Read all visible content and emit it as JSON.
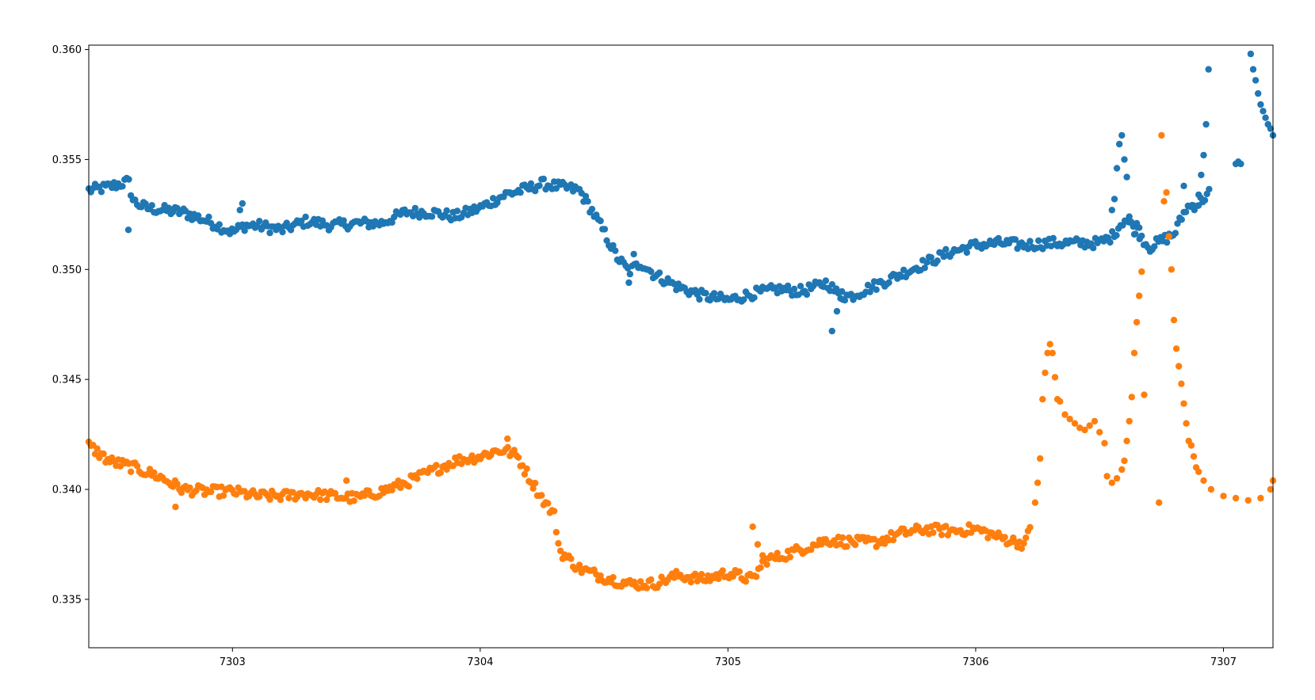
{
  "colors": {
    "series_1": "#1f77b4",
    "series_2": "#ff7f0e",
    "axes": "#000000",
    "background": "#ffffff"
  },
  "chart_data": {
    "type": "scatter",
    "title": "",
    "xlabel": "",
    "ylabel": "",
    "xlim": [
      7302.42,
      7307.2
    ],
    "ylim": [
      0.3328,
      0.3602
    ],
    "grid": false,
    "legend": "none",
    "x_ticks": [
      "7303",
      "7304",
      "7305",
      "7306",
      "7307"
    ],
    "y_ticks": [
      "0.335",
      "0.340",
      "0.345",
      "0.350",
      "0.355",
      "0.360"
    ],
    "series": [
      {
        "color": "#1f77b4",
        "profile": [
          [
            7302.42,
            0.3536
          ],
          [
            7302.48,
            0.3537
          ],
          [
            7302.55,
            0.3539
          ],
          [
            7302.58,
            0.354
          ],
          [
            7302.6,
            0.3531
          ],
          [
            7302.65,
            0.3528
          ],
          [
            7302.72,
            0.3527
          ],
          [
            7302.8,
            0.3526
          ],
          [
            7302.9,
            0.3522
          ],
          [
            7303.0,
            0.3517
          ],
          [
            7303.05,
            0.352
          ],
          [
            7303.1,
            0.352
          ],
          [
            7303.2,
            0.3518
          ],
          [
            7303.3,
            0.3522
          ],
          [
            7303.4,
            0.352
          ],
          [
            7303.5,
            0.3521
          ],
          [
            7303.6,
            0.3521
          ],
          [
            7303.7,
            0.3526
          ],
          [
            7303.8,
            0.3526
          ],
          [
            7303.9,
            0.3524
          ],
          [
            7304.0,
            0.3528
          ],
          [
            7304.1,
            0.3534
          ],
          [
            7304.2,
            0.3537
          ],
          [
            7304.25,
            0.3539
          ],
          [
            7304.3,
            0.3538
          ],
          [
            7304.4,
            0.3536
          ],
          [
            7304.45,
            0.3527
          ],
          [
            7304.5,
            0.3517
          ],
          [
            7304.55,
            0.3506
          ],
          [
            7304.6,
            0.3499
          ],
          [
            7304.65,
            0.3503
          ],
          [
            7304.7,
            0.3498
          ],
          [
            7304.8,
            0.3492
          ],
          [
            7304.9,
            0.3488
          ],
          [
            7305.0,
            0.3486
          ],
          [
            7305.1,
            0.3489
          ],
          [
            7305.2,
            0.3491
          ],
          [
            7305.3,
            0.349
          ],
          [
            7305.4,
            0.3494
          ],
          [
            7305.45,
            0.3488
          ],
          [
            7305.5,
            0.3488
          ],
          [
            7305.6,
            0.3493
          ],
          [
            7305.7,
            0.3498
          ],
          [
            7305.8,
            0.3503
          ],
          [
            7305.9,
            0.3508
          ],
          [
            7306.0,
            0.3511
          ],
          [
            7306.1,
            0.3512
          ],
          [
            7306.2,
            0.3511
          ],
          [
            7306.3,
            0.3512
          ],
          [
            7306.4,
            0.3512
          ],
          [
            7306.5,
            0.3512
          ],
          [
            7306.55,
            0.3515
          ],
          [
            7306.6,
            0.3523
          ],
          [
            7306.65,
            0.3518
          ],
          [
            7306.7,
            0.351
          ],
          [
            7306.8,
            0.3516
          ],
          [
            7306.85,
            0.3528
          ],
          [
            7306.9,
            0.353
          ],
          [
            7306.95,
            0.3536
          ]
        ],
        "extra_points": [
          [
            7302.58,
            0.3518
          ],
          [
            7303.03,
            0.3527
          ],
          [
            7303.04,
            0.353
          ],
          [
            7304.6,
            0.3494
          ],
          [
            7304.62,
            0.3507
          ],
          [
            7305.42,
            0.3472
          ],
          [
            7305.44,
            0.3481
          ],
          [
            7305.46,
            0.349
          ],
          [
            7306.55,
            0.3527
          ],
          [
            7306.56,
            0.3532
          ],
          [
            7306.57,
            0.3546
          ],
          [
            7306.58,
            0.3557
          ],
          [
            7306.59,
            0.3561
          ],
          [
            7306.6,
            0.355
          ],
          [
            7306.61,
            0.3542
          ],
          [
            7306.62,
            0.3524
          ],
          [
            7306.64,
            0.3516
          ],
          [
            7306.65,
            0.3521
          ],
          [
            7306.66,
            0.3519
          ],
          [
            7306.84,
            0.3538
          ],
          [
            7306.88,
            0.3529
          ],
          [
            7306.9,
            0.3534
          ],
          [
            7306.91,
            0.3543
          ],
          [
            7306.92,
            0.3552
          ],
          [
            7306.93,
            0.3566
          ],
          [
            7306.94,
            0.3591
          ],
          [
            7307.05,
            0.3548
          ],
          [
            7307.06,
            0.3549
          ],
          [
            7307.07,
            0.3548
          ],
          [
            7307.11,
            0.3598
          ],
          [
            7307.12,
            0.3591
          ],
          [
            7307.13,
            0.3586
          ],
          [
            7307.14,
            0.358
          ],
          [
            7307.15,
            0.3575
          ],
          [
            7307.16,
            0.3572
          ],
          [
            7307.17,
            0.3569
          ],
          [
            7307.18,
            0.3566
          ],
          [
            7307.19,
            0.3564
          ],
          [
            7307.2,
            0.3561
          ]
        ]
      },
      {
        "color": "#ff7f0e",
        "profile": [
          [
            7302.42,
            0.342
          ],
          [
            7302.5,
            0.3413
          ],
          [
            7302.6,
            0.341
          ],
          [
            7302.7,
            0.3406
          ],
          [
            7302.8,
            0.34
          ],
          [
            7302.9,
            0.3399
          ],
          [
            7303.0,
            0.3399
          ],
          [
            7303.1,
            0.3397
          ],
          [
            7303.2,
            0.3397
          ],
          [
            7303.3,
            0.3398
          ],
          [
            7303.4,
            0.3397
          ],
          [
            7303.5,
            0.3396
          ],
          [
            7303.6,
            0.3399
          ],
          [
            7303.7,
            0.3403
          ],
          [
            7303.8,
            0.3408
          ],
          [
            7303.9,
            0.3413
          ],
          [
            7304.0,
            0.3415
          ],
          [
            7304.05,
            0.3417
          ],
          [
            7304.1,
            0.3418
          ],
          [
            7304.15,
            0.3415
          ],
          [
            7304.2,
            0.3405
          ],
          [
            7304.25,
            0.3396
          ],
          [
            7304.3,
            0.3388
          ],
          [
            7304.32,
            0.3372
          ],
          [
            7304.4,
            0.3364
          ],
          [
            7304.5,
            0.336
          ],
          [
            7304.6,
            0.3357
          ],
          [
            7304.7,
            0.3357
          ],
          [
            7304.8,
            0.3361
          ],
          [
            7304.9,
            0.3359
          ],
          [
            7305.0,
            0.3362
          ],
          [
            7305.1,
            0.3359
          ],
          [
            7305.15,
            0.3368
          ],
          [
            7305.2,
            0.3369
          ],
          [
            7305.3,
            0.3373
          ],
          [
            7305.4,
            0.3377
          ],
          [
            7305.5,
            0.3376
          ],
          [
            7305.6,
            0.3376
          ],
          [
            7305.7,
            0.338
          ],
          [
            7305.8,
            0.3382
          ],
          [
            7305.9,
            0.3381
          ],
          [
            7306.0,
            0.3382
          ],
          [
            7306.1,
            0.3378
          ],
          [
            7306.2,
            0.3375
          ],
          [
            7306.22,
            0.3383
          ]
        ],
        "extra_points": [
          [
            7302.77,
            0.3392
          ],
          [
            7303.46,
            0.3404
          ],
          [
            7304.11,
            0.3423
          ],
          [
            7305.1,
            0.3383
          ],
          [
            7305.12,
            0.3375
          ],
          [
            7305.14,
            0.337
          ],
          [
            7306.24,
            0.3394
          ],
          [
            7306.25,
            0.3403
          ],
          [
            7306.26,
            0.3414
          ],
          [
            7306.27,
            0.3441
          ],
          [
            7306.28,
            0.3453
          ],
          [
            7306.29,
            0.3462
          ],
          [
            7306.3,
            0.3466
          ],
          [
            7306.31,
            0.3462
          ],
          [
            7306.32,
            0.3451
          ],
          [
            7306.33,
            0.3441
          ],
          [
            7306.34,
            0.344
          ],
          [
            7306.36,
            0.3434
          ],
          [
            7306.38,
            0.3432
          ],
          [
            7306.4,
            0.343
          ],
          [
            7306.42,
            0.3428
          ],
          [
            7306.44,
            0.3427
          ],
          [
            7306.46,
            0.3429
          ],
          [
            7306.48,
            0.3431
          ],
          [
            7306.5,
            0.3426
          ],
          [
            7306.52,
            0.3421
          ],
          [
            7306.53,
            0.3406
          ],
          [
            7306.55,
            0.3403
          ],
          [
            7306.57,
            0.3405
          ],
          [
            7306.59,
            0.3409
          ],
          [
            7306.6,
            0.3413
          ],
          [
            7306.61,
            0.3422
          ],
          [
            7306.62,
            0.3431
          ],
          [
            7306.63,
            0.3442
          ],
          [
            7306.64,
            0.3462
          ],
          [
            7306.65,
            0.3476
          ],
          [
            7306.66,
            0.3488
          ],
          [
            7306.67,
            0.3499
          ],
          [
            7306.68,
            0.3443
          ],
          [
            7306.74,
            0.3394
          ],
          [
            7306.75,
            0.3561
          ],
          [
            7306.76,
            0.3531
          ],
          [
            7306.77,
            0.3535
          ],
          [
            7306.78,
            0.3515
          ],
          [
            7306.79,
            0.35
          ],
          [
            7306.8,
            0.3477
          ],
          [
            7306.81,
            0.3464
          ],
          [
            7306.82,
            0.3456
          ],
          [
            7306.83,
            0.3448
          ],
          [
            7306.84,
            0.3439
          ],
          [
            7306.85,
            0.343
          ],
          [
            7306.86,
            0.3422
          ],
          [
            7306.87,
            0.342
          ],
          [
            7306.88,
            0.3415
          ],
          [
            7306.89,
            0.341
          ],
          [
            7306.9,
            0.3408
          ],
          [
            7306.92,
            0.3404
          ],
          [
            7306.95,
            0.34
          ],
          [
            7307.0,
            0.3397
          ],
          [
            7307.05,
            0.3396
          ],
          [
            7307.1,
            0.3395
          ],
          [
            7307.15,
            0.3396
          ],
          [
            7307.19,
            0.34
          ],
          [
            7307.2,
            0.3404
          ]
        ]
      }
    ]
  }
}
